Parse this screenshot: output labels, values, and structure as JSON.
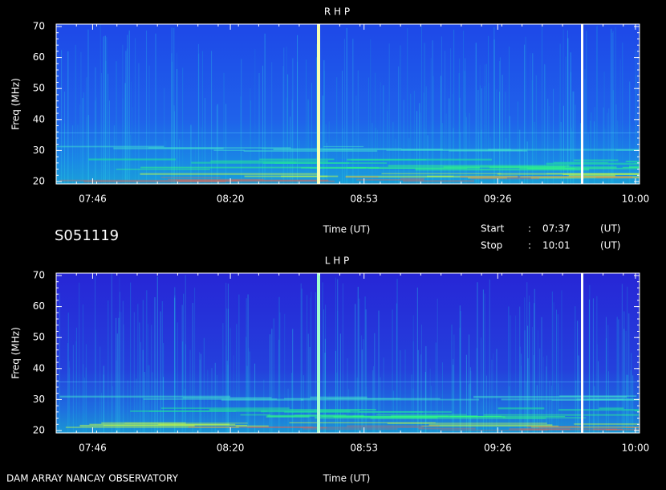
{
  "header": {
    "id": "S051119",
    "start_label": "Start",
    "stop_label": "Stop",
    "separator": ":",
    "unit": "(UT)",
    "footer": "DAM ARRAY  NANCAY OBSERVATORY"
  },
  "chart_data": [
    {
      "type": "spectrogram",
      "title": "R H P",
      "y_label": "Freq (MHz)",
      "x_label": "Time (UT)",
      "xlim": [
        "07:37",
        "10:01"
      ],
      "xticks": [
        "07:46",
        "08:20",
        "08:53",
        "09:26",
        "10:00"
      ],
      "ylim": [
        20,
        70
      ],
      "yticks": [
        20,
        30,
        40,
        50,
        60,
        70
      ]
    },
    {
      "type": "spectrogram",
      "title": "L H P",
      "y_label": "Freq (MHz)",
      "x_label": "Time (UT)",
      "xlim": [
        "07:37",
        "10:01"
      ],
      "xticks": [
        "07:46",
        "08:20",
        "08:53",
        "09:26",
        "10:00"
      ],
      "ylim": [
        20,
        70
      ],
      "yticks": [
        20,
        30,
        40,
        50,
        60,
        70
      ]
    }
  ]
}
